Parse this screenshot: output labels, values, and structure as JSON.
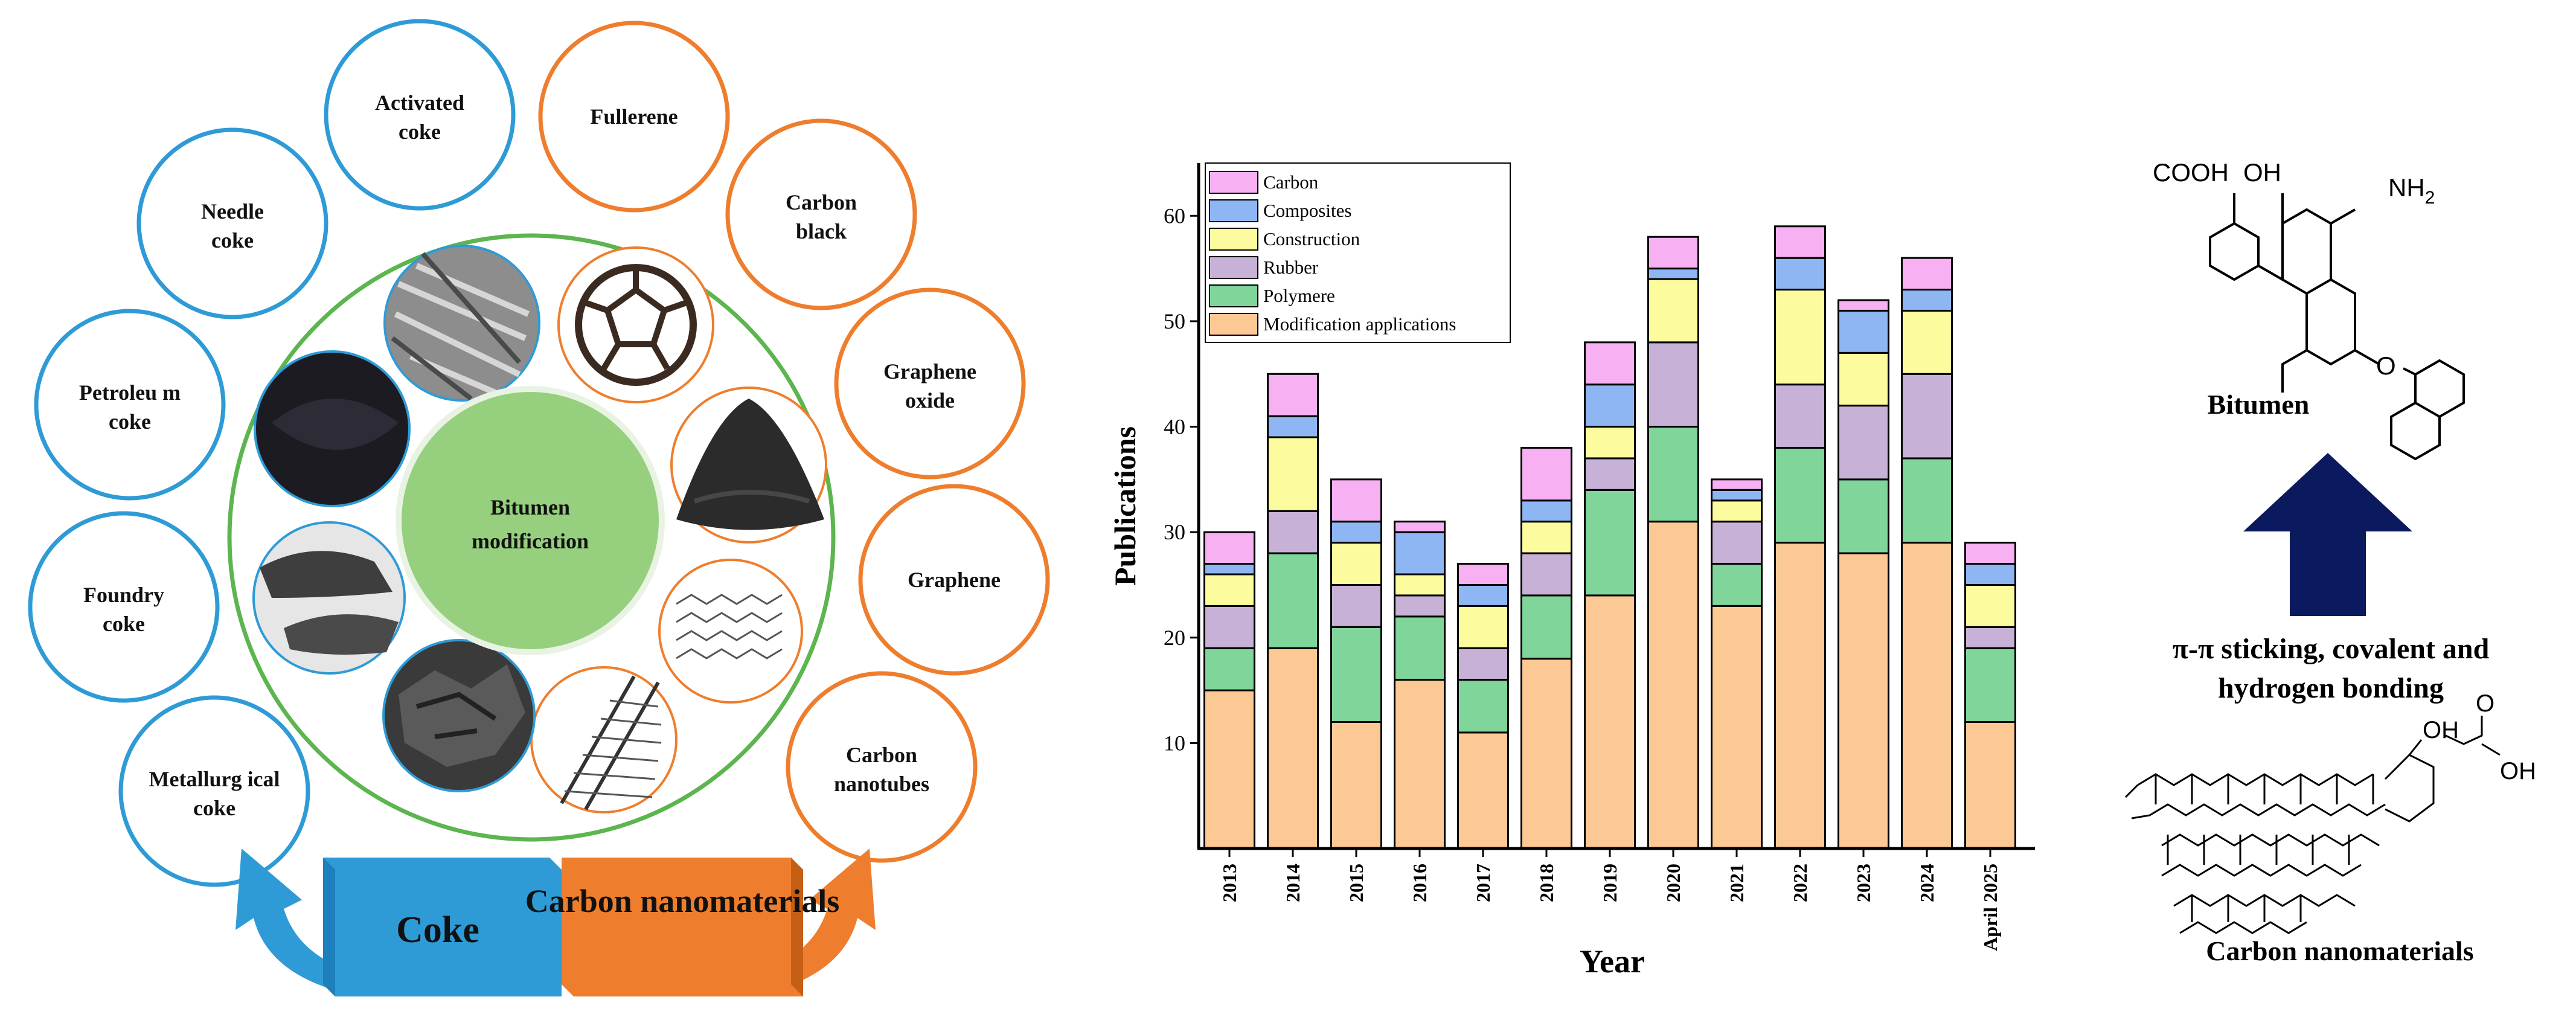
{
  "colors": {
    "coke_blue": "#2e9bd6",
    "carbon_orange": "#ee7e2d",
    "inner_green": "#5cb54f",
    "center_green": "#96d07e",
    "arrow_navy": "#0b1a5e",
    "modification": "#fcc894",
    "polymere": "#7fd59a",
    "rubber": "#c8b1d6",
    "construction": "#fcfc9e",
    "composites": "#8db6f2",
    "carbon": "#f7b0f2"
  },
  "left": {
    "center_label": "Bitumen modification",
    "coke_circles": [
      {
        "label": "Activated coke"
      },
      {
        "label": "Needle coke"
      },
      {
        "label": "Petroleu m coke"
      },
      {
        "label": "Foundry coke"
      },
      {
        "label": "Metallurg ical coke"
      }
    ],
    "nano_circles": [
      {
        "label": "Fullerene"
      },
      {
        "label": "Carbon black"
      },
      {
        "label": "Graphene oxide"
      },
      {
        "label": "Graphene"
      },
      {
        "label": "Carbon nanotubes"
      }
    ],
    "banner_coke": "Coke",
    "banner_nano": "Carbon nanomaterials"
  },
  "chart_data": {
    "type": "bar",
    "stacked": true,
    "title": "",
    "xlabel": "Year",
    "ylabel": "Publications",
    "ylim": [
      0,
      65
    ],
    "yticks": [
      10,
      20,
      30,
      40,
      50,
      60
    ],
    "categories": [
      "2013",
      "2014",
      "2015",
      "2016",
      "2017",
      "2018",
      "2019",
      "2020",
      "2021",
      "2022",
      "2023",
      "2024",
      "April 2025"
    ],
    "series": [
      {
        "name": "Modification applications",
        "values": [
          15,
          19,
          12,
          16,
          11,
          18,
          24,
          31,
          23,
          29,
          28,
          29,
          12
        ]
      },
      {
        "name": "Polymere",
        "values": [
          4,
          9,
          9,
          6,
          5,
          6,
          10,
          9,
          4,
          9,
          7,
          8,
          7
        ]
      },
      {
        "name": "Rubber",
        "values": [
          4,
          4,
          4,
          2,
          3,
          4,
          3,
          8,
          4,
          6,
          7,
          8,
          2
        ]
      },
      {
        "name": "Construction",
        "values": [
          3,
          7,
          4,
          2,
          4,
          3,
          3,
          6,
          2,
          9,
          5,
          6,
          4
        ]
      },
      {
        "name": "Composites",
        "values": [
          1,
          2,
          2,
          4,
          2,
          2,
          4,
          1,
          1,
          3,
          4,
          2,
          2
        ]
      },
      {
        "name": "Carbon",
        "values": [
          3,
          4,
          4,
          1,
          2,
          5,
          4,
          3,
          1,
          3,
          1,
          3,
          2
        ]
      }
    ],
    "legend_order": [
      "Carbon",
      "Composites",
      "Construction",
      "Rubber",
      "Polymere",
      "Modification applications"
    ],
    "legend_position": "top-left"
  },
  "right": {
    "bitumen_label": "Bitumen",
    "interaction_line1": "π-π sticking, covalent and",
    "interaction_line2": "hydrogen bonding",
    "carbon_nano_label": "Carbon nanomaterials",
    "chem_cooh": "COOH",
    "chem_oh1": "OH",
    "chem_nh": "NH",
    "chem_nh_sub": "2",
    "chem_o": "O",
    "chem_oh2": "OH",
    "chem_o2": "O",
    "chem_oh3": "OH"
  }
}
